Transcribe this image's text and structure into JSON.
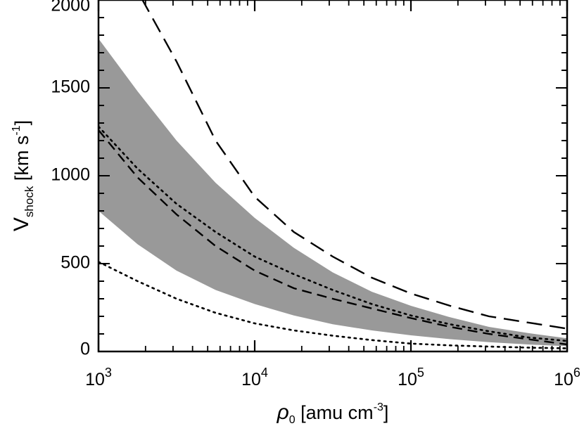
{
  "chart_data": {
    "type": "line",
    "xscale": "log",
    "xlim": [
      1000,
      1000000
    ],
    "ylim": [
      0,
      2000
    ],
    "grid": false,
    "legend": "none",
    "xlabel": {
      "symbol": "ρ",
      "sub": "0",
      "text": " [amu cm",
      "sup": "-3",
      "close": "]"
    },
    "ylabel": {
      "symbol": "V",
      "sub": "shock",
      "text": " [km s",
      "sup": "-1",
      "close": "]"
    },
    "xticks": [
      {
        "value": 1000,
        "base": "10",
        "exp": "3"
      },
      {
        "value": 10000,
        "base": "10",
        "exp": "4"
      },
      {
        "value": 100000,
        "base": "10",
        "exp": "5"
      },
      {
        "value": 1000000,
        "base": "10",
        "exp": "6"
      }
    ],
    "yticks": [
      {
        "value": 0,
        "label": "0"
      },
      {
        "value": 500,
        "label": "500"
      },
      {
        "value": 1000,
        "label": "1000"
      },
      {
        "value": 1500,
        "label": "1500"
      },
      {
        "value": 2000,
        "label": "2000"
      }
    ],
    "x": [
      1000,
      1780,
      3160,
      5620,
      10000,
      17800,
      31600,
      56200,
      100000,
      178000,
      316000,
      562000,
      1000000
    ],
    "band": {
      "color": "#999999",
      "upper": [
        1780,
        1480,
        1200,
        960,
        760,
        590,
        450,
        340,
        260,
        195,
        140,
        105,
        75
      ],
      "lower": [
        800,
        610,
        460,
        350,
        270,
        205,
        155,
        120,
        92,
        70,
        53,
        40,
        30
      ]
    },
    "series": [
      {
        "style": "long-dash",
        "color": "#000000",
        "values": [
          2900,
          2050,
          1650,
          1200,
          880,
          680,
          540,
          420,
          330,
          260,
          200,
          165,
          130
        ]
      },
      {
        "style": "short-dash",
        "color": "#000000",
        "values": [
          1260,
          990,
          780,
          600,
          460,
          360,
          300,
          245,
          190,
          140,
          100,
          70,
          40
        ]
      },
      {
        "style": "dot",
        "color": "#000000",
        "values": [
          1280,
          1040,
          840,
          680,
          540,
          440,
          350,
          270,
          205,
          155,
          115,
          80,
          60
        ]
      },
      {
        "style": "dot",
        "color": "#000000",
        "values": [
          510,
          400,
          300,
          220,
          160,
          120,
          90,
          65,
          45,
          35,
          28,
          22,
          18
        ]
      }
    ]
  }
}
